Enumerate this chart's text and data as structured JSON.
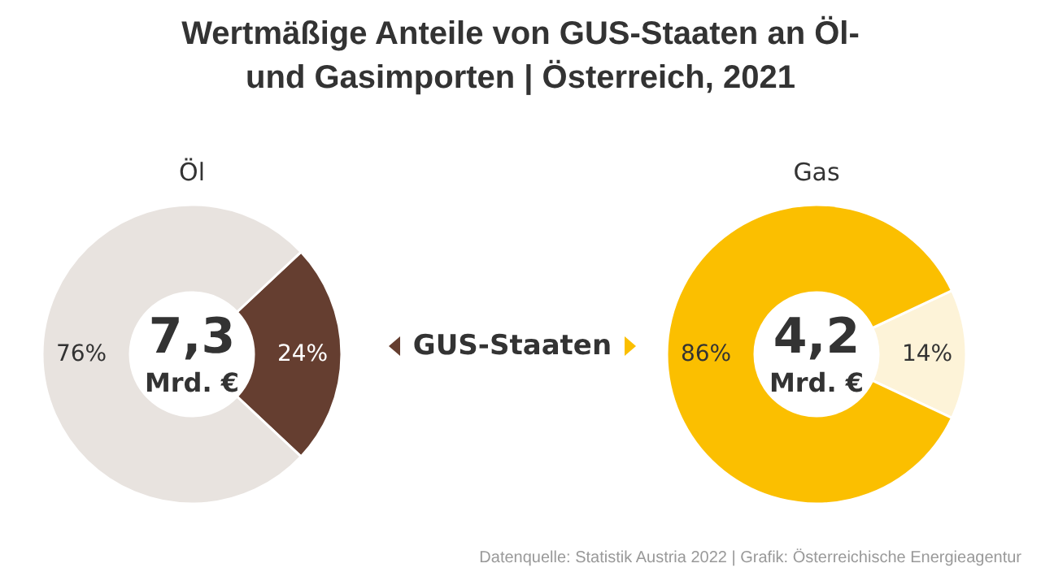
{
  "chart_data": [
    {
      "type": "other",
      "title": "Wertmäßige Anteile von GUS-Staaten an Öl- und Gasimporten | Österreich, 2021",
      "annotations": [
        "GUS-Staaten",
        "Datenquelle: Statistik Austria 2022 | Grafik: Österreichische Energieagentur"
      ]
    },
    {
      "type": "donut",
      "title": "Öl",
      "categories": [
        null,
        null
      ],
      "values": [
        24,
        76
      ],
      "colors": [
        "#653e30",
        "#e8e3df"
      ],
      "value_labels": [
        "24%",
        "76%"
      ],
      "annotations": [
        "7,3",
        "Mrd. €"
      ]
    },
    {
      "type": "donut",
      "title": "Gas",
      "categories": [
        null,
        null
      ],
      "values": [
        14,
        86
      ],
      "colors": [
        "#fdf3d8",
        "#fbbf00"
      ],
      "value_labels": [
        "14%",
        "86%"
      ],
      "annotations": [
        "4,2",
        "Mrd. €"
      ]
    }
  ]
}
